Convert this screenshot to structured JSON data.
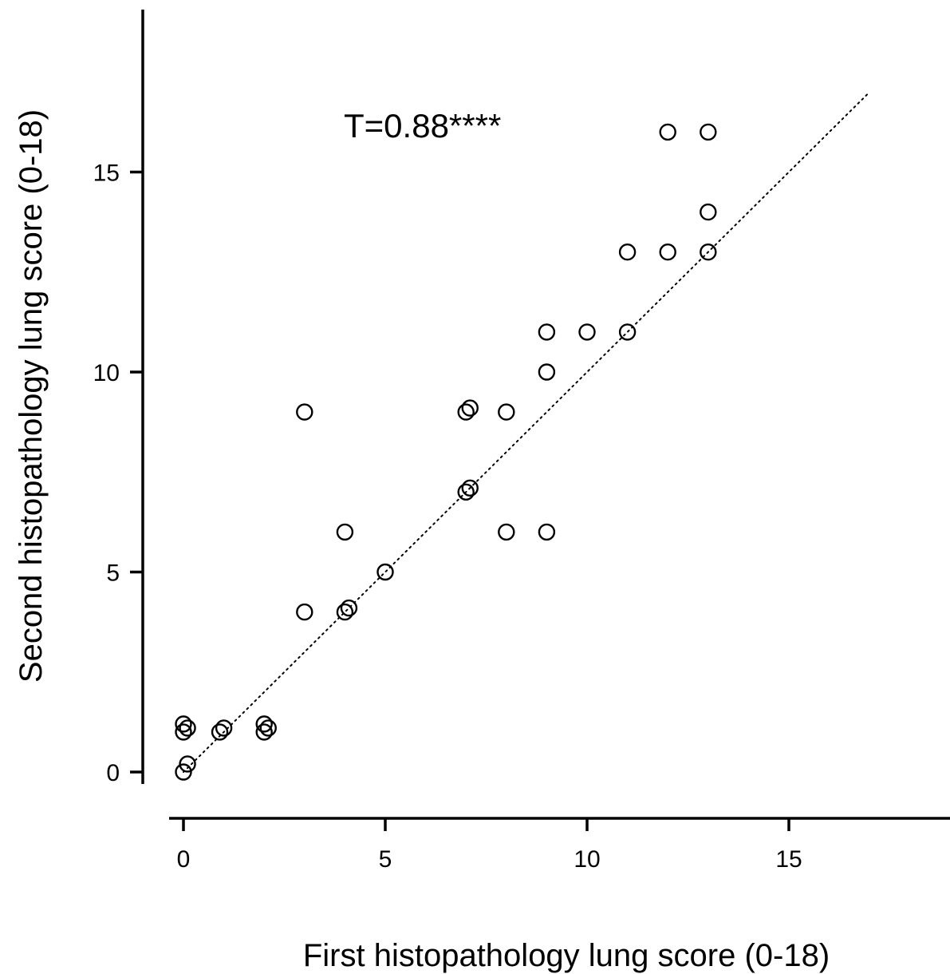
{
  "chart_data": {
    "type": "scatter",
    "xlabel": "First histopathology lung score (0-18)",
    "ylabel": "Second histopathology lung score (0-18)",
    "annotation": "T=0.88****",
    "xlim": [
      0,
      19
    ],
    "ylim": [
      0,
      19
    ],
    "x_ticks": [
      0,
      5,
      10,
      15
    ],
    "y_ticks": [
      0,
      5,
      10,
      15
    ],
    "reference_line": {
      "style": "dotted",
      "from": [
        0,
        0
      ],
      "to": [
        17,
        17
      ]
    },
    "marker": "open-circle",
    "color": "#000000",
    "points": [
      {
        "x": 0,
        "y": 0
      },
      {
        "x": 0.1,
        "y": 0.2
      },
      {
        "x": 0,
        "y": 1
      },
      {
        "x": 0,
        "y": 1.2
      },
      {
        "x": 0.1,
        "y": 1.1
      },
      {
        "x": 0.9,
        "y": 1
      },
      {
        "x": 1,
        "y": 1.1
      },
      {
        "x": 2,
        "y": 1
      },
      {
        "x": 2,
        "y": 1.2
      },
      {
        "x": 2.1,
        "y": 1.1
      },
      {
        "x": 3,
        "y": 4
      },
      {
        "x": 3,
        "y": 9
      },
      {
        "x": 4,
        "y": 4
      },
      {
        "x": 4.1,
        "y": 4.1
      },
      {
        "x": 4,
        "y": 6
      },
      {
        "x": 5,
        "y": 5
      },
      {
        "x": 7,
        "y": 7
      },
      {
        "x": 7.1,
        "y": 7.1
      },
      {
        "x": 7,
        "y": 9
      },
      {
        "x": 7.1,
        "y": 9.1
      },
      {
        "x": 8,
        "y": 9
      },
      {
        "x": 8,
        "y": 6
      },
      {
        "x": 9,
        "y": 6
      },
      {
        "x": 9,
        "y": 10
      },
      {
        "x": 9,
        "y": 11
      },
      {
        "x": 10,
        "y": 11
      },
      {
        "x": 11,
        "y": 11
      },
      {
        "x": 11,
        "y": 13
      },
      {
        "x": 12,
        "y": 13
      },
      {
        "x": 12,
        "y": 16
      },
      {
        "x": 13,
        "y": 13
      },
      {
        "x": 13,
        "y": 14
      },
      {
        "x": 13,
        "y": 16
      }
    ]
  }
}
